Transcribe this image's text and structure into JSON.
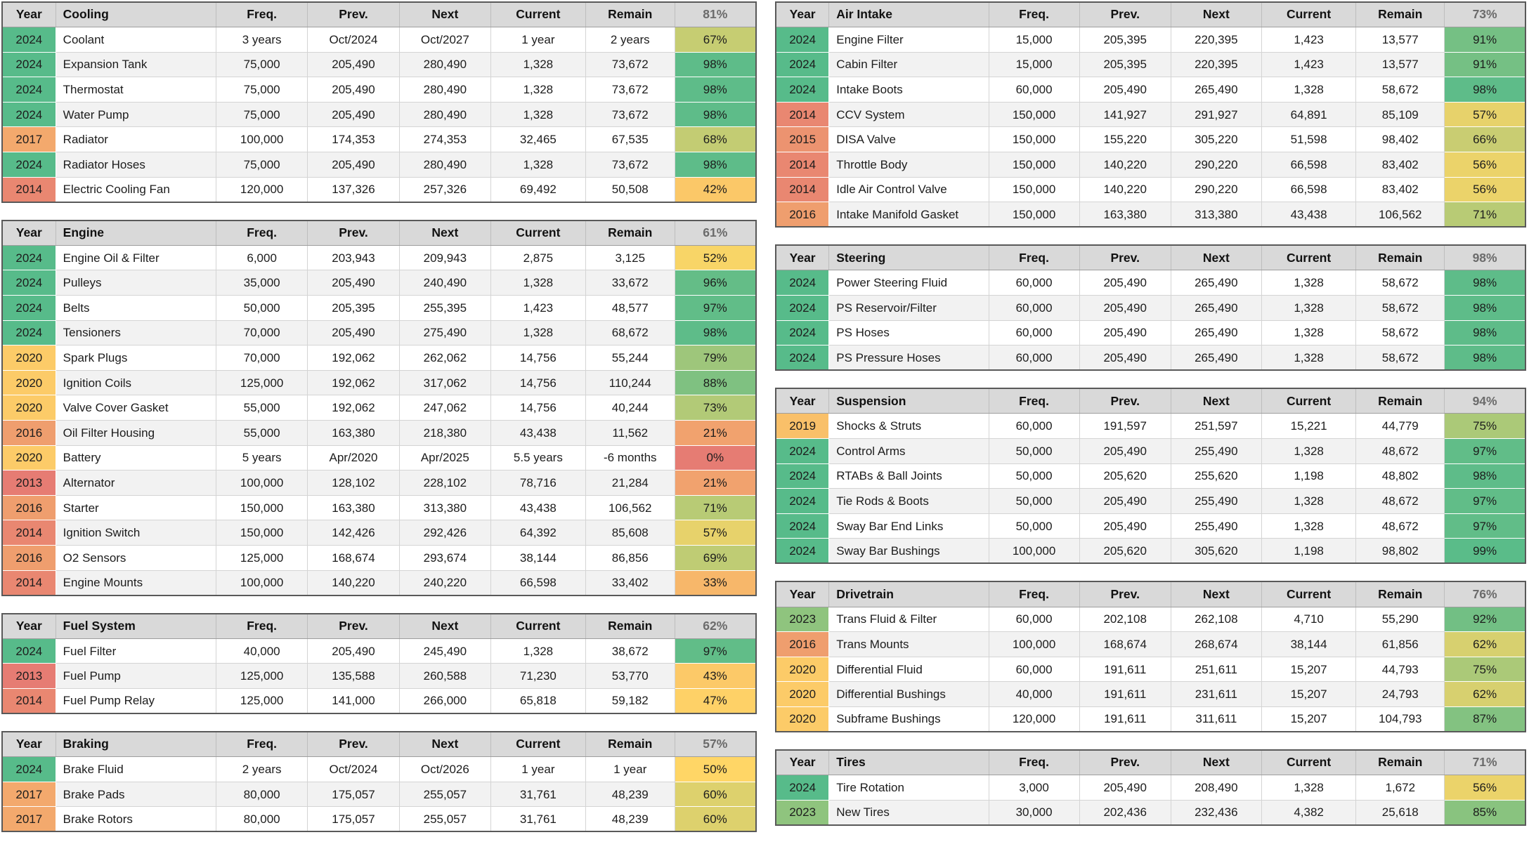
{
  "columns": {
    "year": "Year",
    "freq": "Freq.",
    "prev": "Prev.",
    "next": "Next",
    "current": "Current",
    "remain": "Remain"
  },
  "colors": {
    "scale_min_red": "#E67C73",
    "scale_mid_yellow": "#FFD666",
    "scale_max_green": "#57BB8A",
    "header_bg": "#D9D9D9",
    "header_pct_text": "#6B6B6B",
    "stripe": "#F2F2F2",
    "table_border": "#595959",
    "year_scale": {
      "min_year": 2013,
      "mid_year": 2021,
      "max_year": 2024
    }
  },
  "left_tables": [
    {
      "name": "Cooling",
      "header_pct": "81%",
      "rows": [
        {
          "year": "2024",
          "item": "Coolant",
          "freq": "3 years",
          "prev": "Oct/2024",
          "next": "Oct/2027",
          "current": "1 year",
          "remain": "2 years",
          "pct": "67%"
        },
        {
          "year": "2024",
          "item": "Expansion Tank",
          "freq": "75,000",
          "prev": "205,490",
          "next": "280,490",
          "current": "1,328",
          "remain": "73,672",
          "pct": "98%"
        },
        {
          "year": "2024",
          "item": "Thermostat",
          "freq": "75,000",
          "prev": "205,490",
          "next": "280,490",
          "current": "1,328",
          "remain": "73,672",
          "pct": "98%"
        },
        {
          "year": "2024",
          "item": "Water Pump",
          "freq": "75,000",
          "prev": "205,490",
          "next": "280,490",
          "current": "1,328",
          "remain": "73,672",
          "pct": "98%"
        },
        {
          "year": "2017",
          "item": "Radiator",
          "freq": "100,000",
          "prev": "174,353",
          "next": "274,353",
          "current": "32,465",
          "remain": "67,535",
          "pct": "68%"
        },
        {
          "year": "2024",
          "item": "Radiator Hoses",
          "freq": "75,000",
          "prev": "205,490",
          "next": "280,490",
          "current": "1,328",
          "remain": "73,672",
          "pct": "98%"
        },
        {
          "year": "2014",
          "item": "Electric Cooling Fan",
          "freq": "120,000",
          "prev": "137,326",
          "next": "257,326",
          "current": "69,492",
          "remain": "50,508",
          "pct": "42%"
        }
      ]
    },
    {
      "name": "Engine",
      "header_pct": "61%",
      "rows": [
        {
          "year": "2024",
          "item": "Engine Oil & Filter",
          "freq": "6,000",
          "prev": "203,943",
          "next": "209,943",
          "current": "2,875",
          "remain": "3,125",
          "pct": "52%"
        },
        {
          "year": "2024",
          "item": "Pulleys",
          "freq": "35,000",
          "prev": "205,490",
          "next": "240,490",
          "current": "1,328",
          "remain": "33,672",
          "pct": "96%"
        },
        {
          "year": "2024",
          "item": "Belts",
          "freq": "50,000",
          "prev": "205,395",
          "next": "255,395",
          "current": "1,423",
          "remain": "48,577",
          "pct": "97%"
        },
        {
          "year": "2024",
          "item": "Tensioners",
          "freq": "70,000",
          "prev": "205,490",
          "next": "275,490",
          "current": "1,328",
          "remain": "68,672",
          "pct": "98%"
        },
        {
          "year": "2020",
          "item": "Spark Plugs",
          "freq": "70,000",
          "prev": "192,062",
          "next": "262,062",
          "current": "14,756",
          "remain": "55,244",
          "pct": "79%"
        },
        {
          "year": "2020",
          "item": "Ignition Coils",
          "freq": "125,000",
          "prev": "192,062",
          "next": "317,062",
          "current": "14,756",
          "remain": "110,244",
          "pct": "88%"
        },
        {
          "year": "2020",
          "item": "Valve Cover Gasket",
          "freq": "55,000",
          "prev": "192,062",
          "next": "247,062",
          "current": "14,756",
          "remain": "40,244",
          "pct": "73%"
        },
        {
          "year": "2016",
          "item": "Oil Filter Housing",
          "freq": "55,000",
          "prev": "163,380",
          "next": "218,380",
          "current": "43,438",
          "remain": "11,562",
          "pct": "21%"
        },
        {
          "year": "2020",
          "item": "Battery",
          "freq": "5 years",
          "prev": "Apr/2020",
          "next": "Apr/2025",
          "current": "5.5 years",
          "remain": "-6 months",
          "pct": "0%"
        },
        {
          "year": "2013",
          "item": "Alternator",
          "freq": "100,000",
          "prev": "128,102",
          "next": "228,102",
          "current": "78,716",
          "remain": "21,284",
          "pct": "21%"
        },
        {
          "year": "2016",
          "item": "Starter",
          "freq": "150,000",
          "prev": "163,380",
          "next": "313,380",
          "current": "43,438",
          "remain": "106,562",
          "pct": "71%"
        },
        {
          "year": "2014",
          "item": "Ignition Switch",
          "freq": "150,000",
          "prev": "142,426",
          "next": "292,426",
          "current": "64,392",
          "remain": "85,608",
          "pct": "57%"
        },
        {
          "year": "2016",
          "item": "O2 Sensors",
          "freq": "125,000",
          "prev": "168,674",
          "next": "293,674",
          "current": "38,144",
          "remain": "86,856",
          "pct": "69%"
        },
        {
          "year": "2014",
          "item": "Engine Mounts",
          "freq": "100,000",
          "prev": "140,220",
          "next": "240,220",
          "current": "66,598",
          "remain": "33,402",
          "pct": "33%"
        }
      ]
    },
    {
      "name": "Fuel System",
      "header_pct": "62%",
      "rows": [
        {
          "year": "2024",
          "item": "Fuel Filter",
          "freq": "40,000",
          "prev": "205,490",
          "next": "245,490",
          "current": "1,328",
          "remain": "38,672",
          "pct": "97%"
        },
        {
          "year": "2013",
          "item": "Fuel Pump",
          "freq": "125,000",
          "prev": "135,588",
          "next": "260,588",
          "current": "71,230",
          "remain": "53,770",
          "pct": "43%"
        },
        {
          "year": "2014",
          "item": "Fuel Pump Relay",
          "freq": "125,000",
          "prev": "141,000",
          "next": "266,000",
          "current": "65,818",
          "remain": "59,182",
          "pct": "47%"
        }
      ]
    },
    {
      "name": "Braking",
      "header_pct": "57%",
      "rows": [
        {
          "year": "2024",
          "item": "Brake Fluid",
          "freq": "2 years",
          "prev": "Oct/2024",
          "next": "Oct/2026",
          "current": "1 year",
          "remain": "1 year",
          "pct": "50%"
        },
        {
          "year": "2017",
          "item": "Brake Pads",
          "freq": "80,000",
          "prev": "175,057",
          "next": "255,057",
          "current": "31,761",
          "remain": "48,239",
          "pct": "60%"
        },
        {
          "year": "2017",
          "item": "Brake Rotors",
          "freq": "80,000",
          "prev": "175,057",
          "next": "255,057",
          "current": "31,761",
          "remain": "48,239",
          "pct": "60%"
        }
      ]
    }
  ],
  "right_tables": [
    {
      "name": "Air Intake",
      "header_pct": "73%",
      "rows": [
        {
          "year": "2024",
          "item": "Engine Filter",
          "freq": "15,000",
          "prev": "205,395",
          "next": "220,395",
          "current": "1,423",
          "remain": "13,577",
          "pct": "91%"
        },
        {
          "year": "2024",
          "item": "Cabin Filter",
          "freq": "15,000",
          "prev": "205,395",
          "next": "220,395",
          "current": "1,423",
          "remain": "13,577",
          "pct": "91%"
        },
        {
          "year": "2024",
          "item": "Intake Boots",
          "freq": "60,000",
          "prev": "205,490",
          "next": "265,490",
          "current": "1,328",
          "remain": "58,672",
          "pct": "98%"
        },
        {
          "year": "2014",
          "item": "CCV System",
          "freq": "150,000",
          "prev": "141,927",
          "next": "291,927",
          "current": "64,891",
          "remain": "85,109",
          "pct": "57%"
        },
        {
          "year": "2015",
          "item": "DISA Valve",
          "freq": "150,000",
          "prev": "155,220",
          "next": "305,220",
          "current": "51,598",
          "remain": "98,402",
          "pct": "66%"
        },
        {
          "year": "2014",
          "item": "Throttle Body",
          "freq": "150,000",
          "prev": "140,220",
          "next": "290,220",
          "current": "66,598",
          "remain": "83,402",
          "pct": "56%"
        },
        {
          "year": "2014",
          "item": "Idle Air Control Valve",
          "freq": "150,000",
          "prev": "140,220",
          "next": "290,220",
          "current": "66,598",
          "remain": "83,402",
          "pct": "56%"
        },
        {
          "year": "2016",
          "item": "Intake Manifold Gasket",
          "freq": "150,000",
          "prev": "163,380",
          "next": "313,380",
          "current": "43,438",
          "remain": "106,562",
          "pct": "71%"
        }
      ]
    },
    {
      "name": "Steering",
      "header_pct": "98%",
      "rows": [
        {
          "year": "2024",
          "item": "Power Steering Fluid",
          "freq": "60,000",
          "prev": "205,490",
          "next": "265,490",
          "current": "1,328",
          "remain": "58,672",
          "pct": "98%"
        },
        {
          "year": "2024",
          "item": "PS Reservoir/Filter",
          "freq": "60,000",
          "prev": "205,490",
          "next": "265,490",
          "current": "1,328",
          "remain": "58,672",
          "pct": "98%"
        },
        {
          "year": "2024",
          "item": "PS Hoses",
          "freq": "60,000",
          "prev": "205,490",
          "next": "265,490",
          "current": "1,328",
          "remain": "58,672",
          "pct": "98%"
        },
        {
          "year": "2024",
          "item": "PS Pressure Hoses",
          "freq": "60,000",
          "prev": "205,490",
          "next": "265,490",
          "current": "1,328",
          "remain": "58,672",
          "pct": "98%"
        }
      ]
    },
    {
      "name": "Suspension",
      "header_pct": "94%",
      "rows": [
        {
          "year": "2019",
          "item": "Shocks & Struts",
          "freq": "60,000",
          "prev": "191,597",
          "next": "251,597",
          "current": "15,221",
          "remain": "44,779",
          "pct": "75%"
        },
        {
          "year": "2024",
          "item": "Control Arms",
          "freq": "50,000",
          "prev": "205,490",
          "next": "255,490",
          "current": "1,328",
          "remain": "48,672",
          "pct": "97%"
        },
        {
          "year": "2024",
          "item": "RTABs & Ball Joints",
          "freq": "50,000",
          "prev": "205,620",
          "next": "255,620",
          "current": "1,198",
          "remain": "48,802",
          "pct": "98%"
        },
        {
          "year": "2024",
          "item": "Tie Rods & Boots",
          "freq": "50,000",
          "prev": "205,490",
          "next": "255,490",
          "current": "1,328",
          "remain": "48,672",
          "pct": "97%"
        },
        {
          "year": "2024",
          "item": "Sway Bar End Links",
          "freq": "50,000",
          "prev": "205,490",
          "next": "255,490",
          "current": "1,328",
          "remain": "48,672",
          "pct": "97%"
        },
        {
          "year": "2024",
          "item": "Sway Bar Bushings",
          "freq": "100,000",
          "prev": "205,620",
          "next": "305,620",
          "current": "1,198",
          "remain": "98,802",
          "pct": "99%"
        }
      ]
    },
    {
      "name": "Drivetrain",
      "header_pct": "76%",
      "rows": [
        {
          "year": "2023",
          "item": "Trans Fluid & Filter",
          "freq": "60,000",
          "prev": "202,108",
          "next": "262,108",
          "current": "4,710",
          "remain": "55,290",
          "pct": "92%"
        },
        {
          "year": "2016",
          "item": "Trans Mounts",
          "freq": "100,000",
          "prev": "168,674",
          "next": "268,674",
          "current": "38,144",
          "remain": "61,856",
          "pct": "62%"
        },
        {
          "year": "2020",
          "item": "Differential Fluid",
          "freq": "60,000",
          "prev": "191,611",
          "next": "251,611",
          "current": "15,207",
          "remain": "44,793",
          "pct": "75%"
        },
        {
          "year": "2020",
          "item": "Differential Bushings",
          "freq": "40,000",
          "prev": "191,611",
          "next": "231,611",
          "current": "15,207",
          "remain": "24,793",
          "pct": "62%"
        },
        {
          "year": "2020",
          "item": "Subframe Bushings",
          "freq": "120,000",
          "prev": "191,611",
          "next": "311,611",
          "current": "15,207",
          "remain": "104,793",
          "pct": "87%"
        }
      ]
    },
    {
      "name": "Tires",
      "header_pct": "71%",
      "rows": [
        {
          "year": "2024",
          "item": "Tire Rotation",
          "freq": "3,000",
          "prev": "205,490",
          "next": "208,490",
          "current": "1,328",
          "remain": "1,672",
          "pct": "56%"
        },
        {
          "year": "2023",
          "item": "New Tires",
          "freq": "30,000",
          "prev": "202,436",
          "next": "232,436",
          "current": "4,382",
          "remain": "25,618",
          "pct": "85%"
        }
      ]
    }
  ]
}
